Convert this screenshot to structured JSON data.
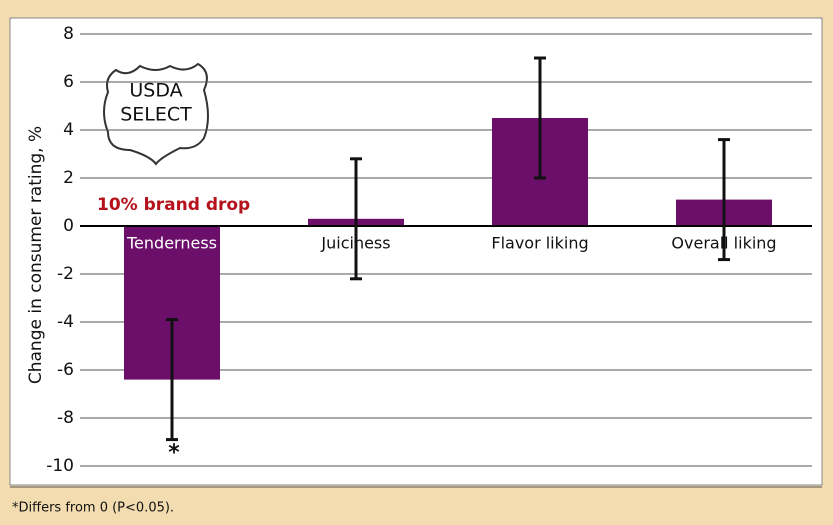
{
  "chart_data": {
    "type": "bar",
    "ylabel": "Change in consumer rating, %",
    "categories": [
      "Tenderness",
      "Juiciness",
      "Flavor liking",
      "Overall liking"
    ],
    "values": [
      -6.4,
      0.3,
      4.5,
      1.1
    ],
    "errors": [
      2.5,
      2.5,
      2.5,
      2.5
    ],
    "color": "#6b0f6b",
    "ylim": [
      -10,
      8
    ],
    "yticks": [
      -10,
      -8,
      -6,
      -4,
      -2,
      0,
      2,
      4,
      6,
      8
    ],
    "grid": true,
    "annotation": "10% brand drop",
    "markers": [
      "*",
      null,
      null,
      null
    ],
    "badge": [
      "USDA",
      "SELECT"
    ],
    "footnote": "*Differs from 0 (P<0.05)."
  }
}
